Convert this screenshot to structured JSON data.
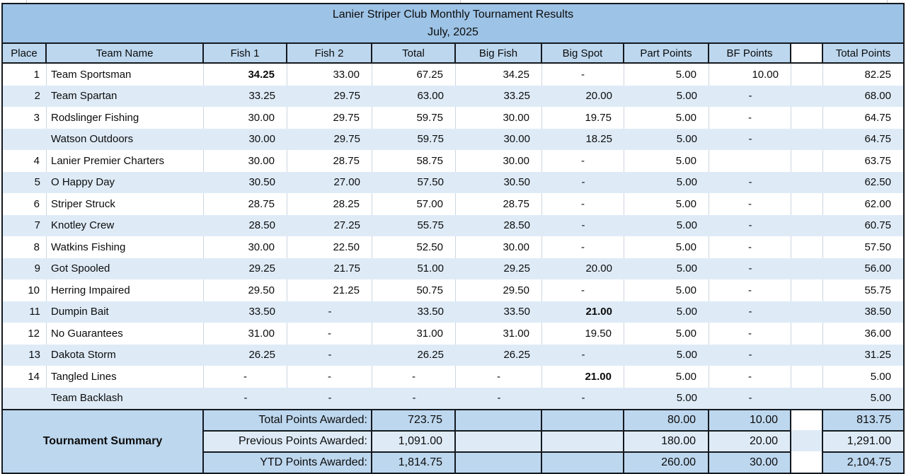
{
  "sheet": {
    "title": "Lanier Striper Club Monthly Tournament Results",
    "subtitle": "July, 2025"
  },
  "colors": {
    "title_band": "#9DC3E6",
    "header_band": "#BDD7EE",
    "row_band": "#DEEBF7",
    "summary_light_band": "#DEEBF7",
    "border": "#14191f",
    "gridline": "#ccd6e0"
  },
  "columns": [
    {
      "key": "place",
      "label": "Place"
    },
    {
      "key": "team",
      "label": "Team Name"
    },
    {
      "key": "fish1",
      "label": "Fish 1"
    },
    {
      "key": "fish2",
      "label": "Fish 2"
    },
    {
      "key": "total",
      "label": "Total"
    },
    {
      "key": "big_fish",
      "label": "Big Fish"
    },
    {
      "key": "big_spot",
      "label": "Big Spot"
    },
    {
      "key": "part_points",
      "label": "Part Points"
    },
    {
      "key": "bf_points",
      "label": "BF Points"
    },
    {
      "key": "gap",
      "label": ""
    },
    {
      "key": "total_points",
      "label": "Total Points"
    }
  ],
  "rows": [
    {
      "place": "1",
      "team": "Team Sportsman",
      "fish1": "34.25",
      "fish2": "33.00",
      "total": "67.25",
      "big_fish": "34.25",
      "big_spot": "-",
      "part_points": "5.00",
      "bf_points": "10.00",
      "total_points": "82.25",
      "bold": [
        "fish1"
      ]
    },
    {
      "place": "2",
      "team": "Team Spartan",
      "fish1": "33.25",
      "fish2": "29.75",
      "total": "63.00",
      "big_fish": "33.25",
      "big_spot": "20.00",
      "part_points": "5.00",
      "bf_points": "-",
      "total_points": "68.00",
      "bold": []
    },
    {
      "place": "3",
      "team": "Rodslinger Fishing",
      "fish1": "30.00",
      "fish2": "29.75",
      "total": "59.75",
      "big_fish": "30.00",
      "big_spot": "19.75",
      "part_points": "5.00",
      "bf_points": "-",
      "total_points": "64.75",
      "bold": []
    },
    {
      "place": "",
      "team": "Watson Outdoors",
      "fish1": "30.00",
      "fish2": "29.75",
      "total": "59.75",
      "big_fish": "30.00",
      "big_spot": "18.25",
      "part_points": "5.00",
      "bf_points": "-",
      "total_points": "64.75",
      "bold": []
    },
    {
      "place": "4",
      "team": "Lanier Premier Charters",
      "fish1": "30.00",
      "fish2": "28.75",
      "total": "58.75",
      "big_fish": "30.00",
      "big_spot": "-",
      "part_points": "5.00",
      "bf_points": "",
      "total_points": "63.75",
      "bold": []
    },
    {
      "place": "5",
      "team": "O Happy Day",
      "fish1": "30.50",
      "fish2": "27.00",
      "total": "57.50",
      "big_fish": "30.50",
      "big_spot": "-",
      "part_points": "5.00",
      "bf_points": "-",
      "total_points": "62.50",
      "bold": []
    },
    {
      "place": "6",
      "team": "Striper Struck",
      "fish1": "28.75",
      "fish2": "28.25",
      "total": "57.00",
      "big_fish": "28.75",
      "big_spot": "-",
      "part_points": "5.00",
      "bf_points": "-",
      "total_points": "62.00",
      "bold": []
    },
    {
      "place": "7",
      "team": "Knotley Crew",
      "fish1": "28.50",
      "fish2": "27.25",
      "total": "55.75",
      "big_fish": "28.50",
      "big_spot": "-",
      "part_points": "5.00",
      "bf_points": "-",
      "total_points": "60.75",
      "bold": []
    },
    {
      "place": "8",
      "team": "Watkins Fishing",
      "fish1": "30.00",
      "fish2": "22.50",
      "total": "52.50",
      "big_fish": "30.00",
      "big_spot": "-",
      "part_points": "5.00",
      "bf_points": "-",
      "total_points": "57.50",
      "bold": []
    },
    {
      "place": "9",
      "team": "Got Spooled",
      "fish1": "29.25",
      "fish2": "21.75",
      "total": "51.00",
      "big_fish": "29.25",
      "big_spot": "20.00",
      "part_points": "5.00",
      "bf_points": "-",
      "total_points": "56.00",
      "bold": []
    },
    {
      "place": "10",
      "team": "Herring Impaired",
      "fish1": "29.50",
      "fish2": "21.25",
      "total": "50.75",
      "big_fish": "29.50",
      "big_spot": "-",
      "part_points": "5.00",
      "bf_points": "-",
      "total_points": "55.75",
      "bold": []
    },
    {
      "place": "11",
      "team": "Dumpin Bait",
      "fish1": "33.50",
      "fish2": "-",
      "total": "33.50",
      "big_fish": "33.50",
      "big_spot": "21.00",
      "part_points": "5.00",
      "bf_points": "-",
      "total_points": "38.50",
      "bold": [
        "big_spot"
      ]
    },
    {
      "place": "12",
      "team": "No Guarantees",
      "fish1": "31.00",
      "fish2": "-",
      "total": "31.00",
      "big_fish": "31.00",
      "big_spot": "19.50",
      "part_points": "5.00",
      "bf_points": "-",
      "total_points": "36.00",
      "bold": []
    },
    {
      "place": "13",
      "team": "Dakota Storm",
      "fish1": "26.25",
      "fish2": "-",
      "total": "26.25",
      "big_fish": "26.25",
      "big_spot": "-",
      "part_points": "5.00",
      "bf_points": "-",
      "total_points": "31.25",
      "bold": []
    },
    {
      "place": "14",
      "team": "Tangled Lines",
      "fish1": "-",
      "fish2": "-",
      "total": "-",
      "big_fish": "-",
      "big_spot": "21.00",
      "part_points": "5.00",
      "bf_points": "-",
      "total_points": "5.00",
      "bold": [
        "big_spot"
      ]
    },
    {
      "place": "",
      "team": "Team Backlash",
      "fish1": "-",
      "fish2": "-",
      "total": "-",
      "big_fish": "-",
      "big_spot": "-",
      "part_points": "5.00",
      "bf_points": "-",
      "total_points": "5.00",
      "bold": []
    }
  ],
  "summary": {
    "label": "Tournament Summary",
    "rows": [
      {
        "label": "Total Points Awarded:",
        "total": "723.75",
        "part_points": "80.00",
        "bf_points": "10.00",
        "total_points": "813.75"
      },
      {
        "label": "Previous Points Awarded:",
        "total": "1,091.00",
        "part_points": "180.00",
        "bf_points": "20.00",
        "total_points": "1,291.00"
      },
      {
        "label": "YTD Points Awarded:",
        "total": "1,814.75",
        "part_points": "260.00",
        "bf_points": "30.00",
        "total_points": "2,104.75"
      }
    ]
  }
}
